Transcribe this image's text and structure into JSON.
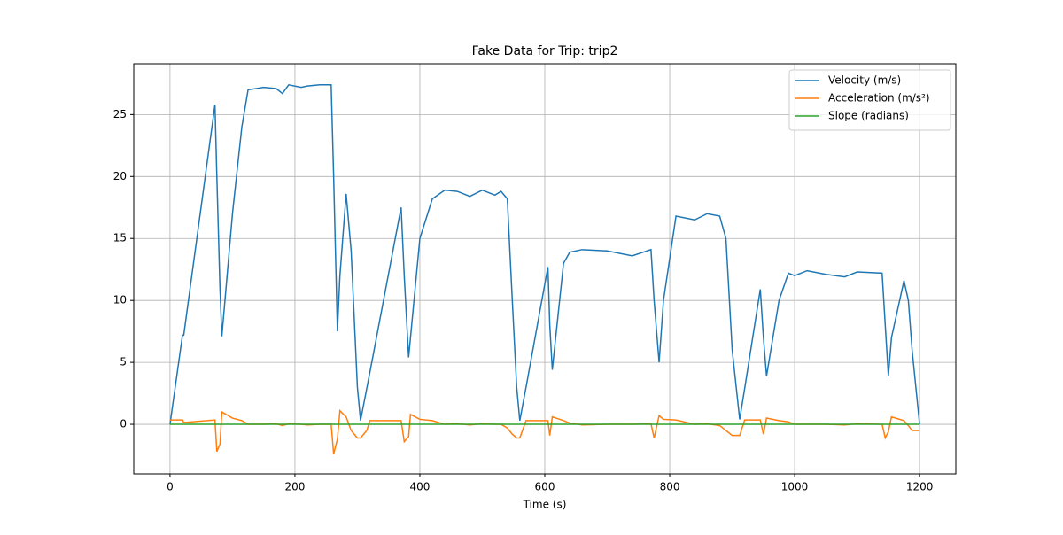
{
  "chart_data": {
    "type": "line",
    "title": "Fake Data for Trip: trip2",
    "x_label": "Time (s)",
    "x": [
      0,
      20,
      22,
      72,
      75,
      80,
      83,
      100,
      115,
      125,
      150,
      170,
      180,
      190,
      210,
      220,
      240,
      258,
      262,
      268,
      272,
      282,
      290,
      300,
      305,
      315,
      320,
      370,
      375,
      382,
      385,
      400,
      420,
      440,
      460,
      480,
      500,
      520,
      530,
      540,
      548,
      555,
      560,
      570,
      605,
      608,
      612,
      630,
      640,
      660,
      700,
      740,
      770,
      775,
      783,
      790,
      810,
      840,
      860,
      880,
      890,
      900,
      912,
      920,
      945,
      950,
      955,
      975,
      990,
      1000,
      1020,
      1050,
      1080,
      1100,
      1140,
      1145,
      1150,
      1155,
      1175,
      1182,
      1188,
      1200
    ],
    "series": [
      {
        "name": "Velocity (m/s)",
        "color": "#1f77b4",
        "values": [
          0,
          7.2,
          7.2,
          25.8,
          20,
          11,
          7.1,
          17,
          24,
          27,
          27.2,
          27.1,
          26.7,
          27.4,
          27.2,
          27.3,
          27.4,
          27.4,
          20,
          7.5,
          12,
          18.6,
          14,
          3,
          0.3,
          2.9,
          4.2,
          17.5,
          12,
          5.4,
          7,
          15,
          18.2,
          18.9,
          18.8,
          18.4,
          18.9,
          18.5,
          18.8,
          18.2,
          10,
          3,
          0.3,
          3,
          12.7,
          8,
          4.4,
          13,
          13.9,
          14.1,
          14,
          13.6,
          14.1,
          10,
          5,
          10,
          16.8,
          16.5,
          17,
          16.8,
          15,
          6,
          0.4,
          2.9,
          10.9,
          7,
          3.9,
          10,
          12.2,
          12,
          12.4,
          12.1,
          11.9,
          12.3,
          12.2,
          8,
          3.9,
          7,
          11.6,
          10,
          6,
          0
        ]
      },
      {
        "name": "Acceleration (m/s²)",
        "color": "#ff7f0e",
        "values": [
          0.35,
          0.35,
          0.15,
          0.35,
          -2.2,
          -1.6,
          1.0,
          0.5,
          0.3,
          0,
          0,
          0.05,
          -0.1,
          0.05,
          0,
          -0.05,
          0,
          0,
          -2.4,
          -1.2,
          1.1,
          0.6,
          -0.5,
          -1.1,
          -1.1,
          -0.5,
          0.3,
          0.3,
          -1.4,
          -1.0,
          0.8,
          0.4,
          0.3,
          0,
          0.05,
          -0.05,
          0.05,
          0,
          0,
          -0.3,
          -0.8,
          -1.1,
          -1.1,
          0.3,
          0.3,
          -0.9,
          0.6,
          0.3,
          0.1,
          -0.05,
          0,
          0,
          0.05,
          -1.1,
          0.7,
          0.4,
          0.35,
          0,
          0.05,
          -0.1,
          -0.5,
          -0.9,
          -0.9,
          0.35,
          0.35,
          -0.8,
          0.5,
          0.3,
          0.2,
          0,
          0,
          0,
          -0.05,
          0.05,
          0,
          -1.1,
          -0.6,
          0.6,
          0.3,
          -0.1,
          -0.5,
          -0.5
        ]
      },
      {
        "name": "Slope (radians)",
        "color": "#2ca02c",
        "values": [
          0,
          0,
          0,
          0,
          0,
          0,
          0,
          0,
          0,
          0,
          0,
          0,
          0,
          0,
          0,
          0,
          0,
          0,
          0,
          0,
          0,
          0,
          0,
          0,
          0,
          0,
          0,
          0,
          0,
          0,
          0,
          0,
          0,
          0,
          0,
          0,
          0,
          0,
          0,
          0,
          0,
          0,
          0,
          0,
          0,
          0,
          0,
          0,
          0,
          0,
          0,
          0,
          0,
          0,
          0,
          0,
          0,
          0,
          0,
          0,
          0,
          0,
          0,
          0,
          0,
          0,
          0,
          0,
          0,
          0,
          0,
          0,
          0,
          0,
          0,
          0,
          0,
          0,
          0,
          0,
          0,
          0
        ]
      }
    ],
    "xlim": [
      -58,
      1258
    ],
    "ylim": [
      -4,
      29.1
    ],
    "xticks": [
      0,
      200,
      400,
      600,
      800,
      1000,
      1200
    ],
    "yticks": [
      0,
      5,
      10,
      15,
      20,
      25
    ],
    "grid": true,
    "legend": "upper right"
  }
}
